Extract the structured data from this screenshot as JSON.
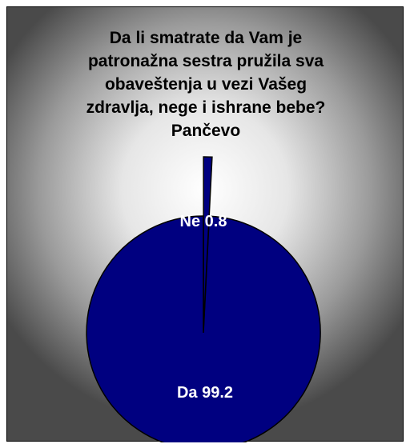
{
  "chart_data": {
    "type": "pie",
    "title_lines": [
      "Da li smatrate da Vam je",
      "patronažna sestra pružila sva",
      "obaveštenja u vezi Vašeg",
      "zdravlja, nege i ishrane bebe?",
      "Pančevo"
    ],
    "categories": [
      "Ne",
      "Da"
    ],
    "values": [
      0.8,
      99.2
    ],
    "data_labels": [
      "Ne 0.8",
      "Da 99.2"
    ],
    "colors": {
      "slice_fill": "#000080",
      "slice_stroke": "#000000",
      "label_text": "#ffffff",
      "background_center": "#ffffff",
      "background_edge": "#4a4a4a"
    },
    "exploded_slice": "Ne",
    "legend": "none"
  }
}
